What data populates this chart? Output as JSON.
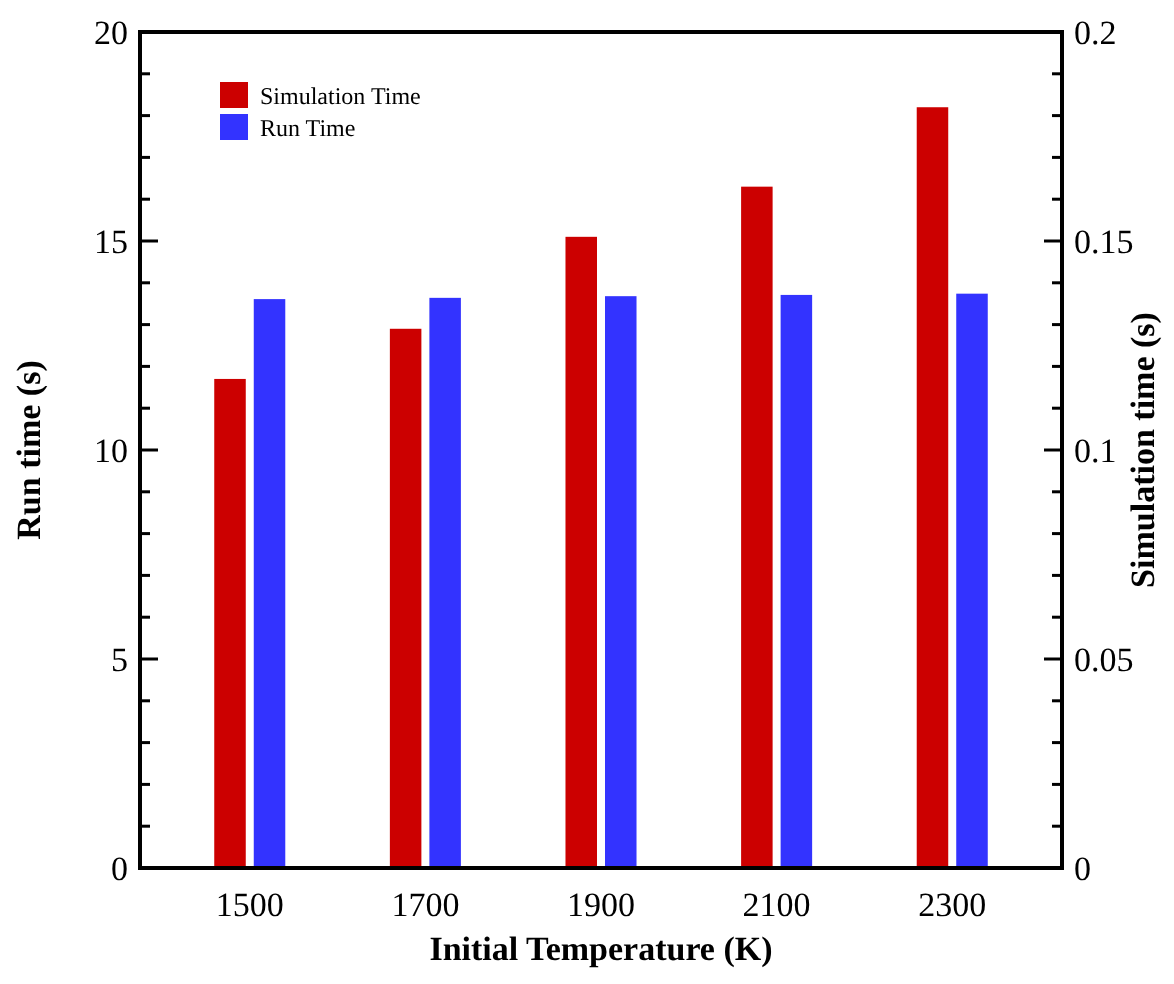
{
  "chart_data": {
    "type": "bar",
    "xlabel": "Initial Temperature (K)",
    "ylabel": "Run time (s)",
    "y2label": "Simulation time (s)",
    "categories": [
      "1500",
      "1700",
      "1900",
      "2100",
      "2300"
    ],
    "series": [
      {
        "name": "Simulation Time",
        "color": "#cc0000",
        "axis": "y2",
        "values": [
          0.117,
          0.129,
          0.151,
          0.163,
          0.182
        ]
      },
      {
        "name": "Run Time",
        "color": "#3333ff",
        "values": [
          13.61,
          13.64,
          13.68,
          13.71,
          13.74
        ]
      }
    ],
    "ylim": [
      0,
      20
    ],
    "yticks": [
      0,
      {
        "value": 1,
        "label": null
      },
      {
        "value": 2,
        "label": null
      },
      {
        "value": 3,
        "label": null
      },
      {
        "value": 4,
        "label": null
      },
      5,
      {
        "value": 6,
        "label": null
      },
      {
        "value": 7,
        "label": null
      },
      {
        "value": 8,
        "label": null
      },
      {
        "value": 9,
        "label": null
      },
      10,
      {
        "value": 11,
        "label": null
      },
      {
        "value": 12,
        "label": null
      },
      {
        "value": 13,
        "label": null
      },
      {
        "value": 14,
        "label": null
      },
      15,
      {
        "value": 16,
        "label": null
      },
      {
        "value": 17,
        "label": null
      },
      {
        "value": 18,
        "label": null
      },
      {
        "value": 19,
        "label": null
      },
      20
    ],
    "y2lim": [
      0,
      0.2
    ],
    "y2ticks": [
      0,
      {
        "value": 0.01,
        "label": null
      },
      {
        "value": 0.02,
        "label": null
      },
      {
        "value": 0.03,
        "label": null
      },
      {
        "value": 0.04,
        "label": null
      },
      0.05,
      {
        "value": 0.06,
        "label": null
      },
      {
        "value": 0.07,
        "label": null
      },
      {
        "value": 0.08,
        "label": null
      },
      {
        "value": 0.09,
        "label": null
      },
      0.1,
      {
        "value": 0.11,
        "label": null
      },
      {
        "value": 0.12,
        "label": null
      },
      {
        "value": 0.13,
        "label": null
      },
      {
        "value": 0.14,
        "label": null
      },
      0.15,
      {
        "value": 0.16,
        "label": null
      },
      {
        "value": 0.17,
        "label": null
      },
      {
        "value": 0.18,
        "label": null
      },
      {
        "value": 0.19,
        "label": null
      },
      0.2
    ],
    "grid": false,
    "legend": "top left"
  }
}
